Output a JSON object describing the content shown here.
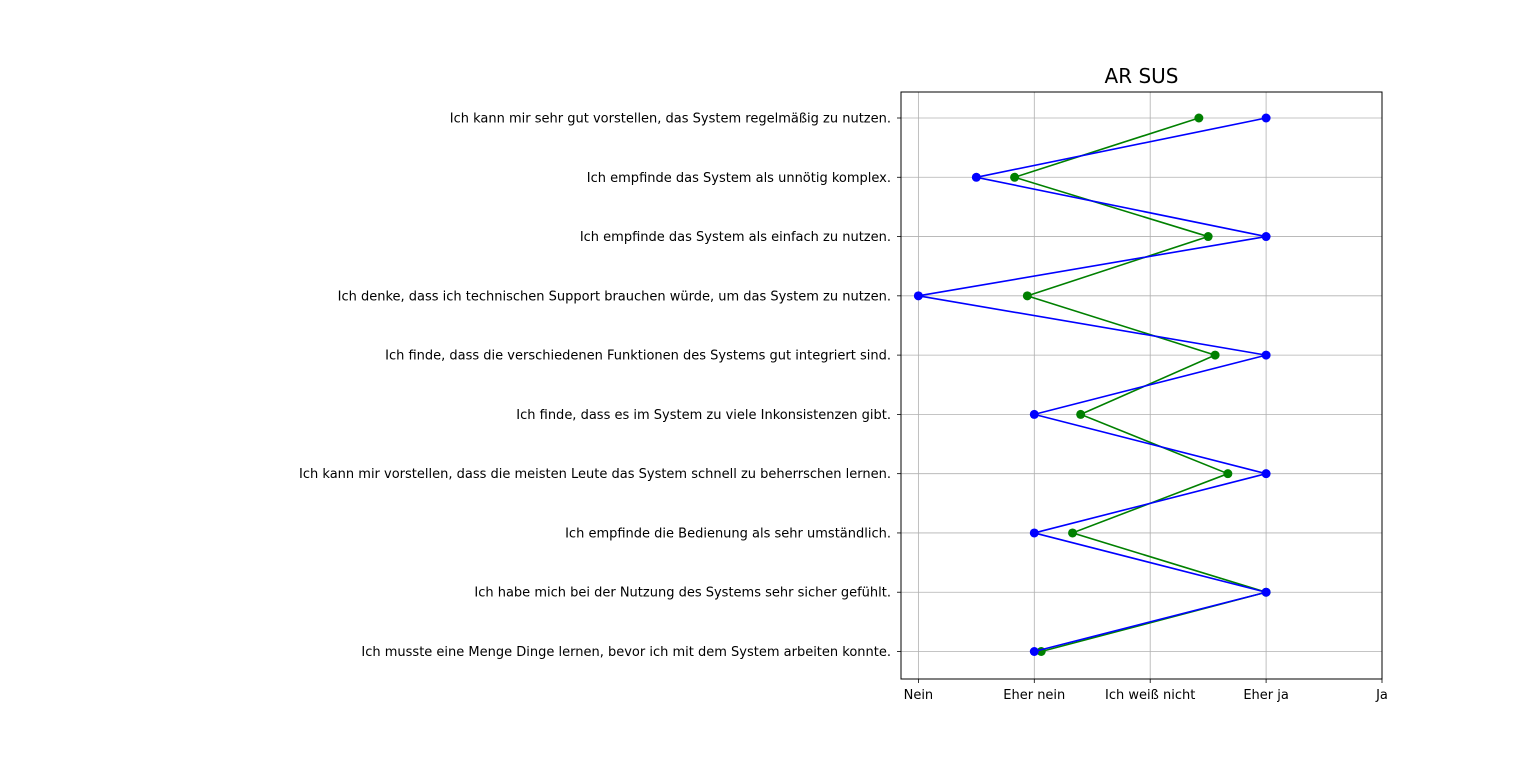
{
  "chart_data": {
    "type": "line",
    "title": "AR SUS",
    "xlabel": "",
    "ylabel": "",
    "x_ticks": [
      "Nein",
      "Eher nein",
      "Ich weiß nicht",
      "Eher ja",
      "Ja"
    ],
    "x_tick_values": [
      1,
      2,
      3,
      4,
      5
    ],
    "xlim": [
      0.85,
      5.0
    ],
    "grid": true,
    "legend": "none",
    "categories": [
      "Ich kann mir sehr gut vorstellen, das System regelmäßig zu nutzen.",
      "Ich empfinde das System als unnötig komplex.",
      "Ich empfinde das System als einfach zu nutzen.",
      "Ich denke, dass ich technischen Support brauchen würde, um das System zu nutzen.",
      "Ich finde, dass die verschiedenen Funktionen des Systems gut integriert sind.",
      "Ich finde, dass es im System zu viele Inkonsistenzen gibt.",
      "Ich kann mir vorstellen, dass die meisten Leute das System schnell zu beherrschen lernen.",
      "Ich empfinde die Bedienung als sehr umständlich.",
      "Ich habe mich bei der Nutzung des Systems sehr sicher gefühlt.",
      "Ich musste eine Menge Dinge lernen, bevor ich mit dem System arbeiten konnte."
    ],
    "series": [
      {
        "color": "#008000",
        "values": [
          3.42,
          1.83,
          3.5,
          1.94,
          3.56,
          2.4,
          3.67,
          2.33,
          4.0,
          2.06
        ]
      },
      {
        "color": "#0000ff",
        "values": [
          4.0,
          1.5,
          4.0,
          1.0,
          4.0,
          2.0,
          4.0,
          2.0,
          4.0,
          2.0
        ]
      }
    ]
  }
}
